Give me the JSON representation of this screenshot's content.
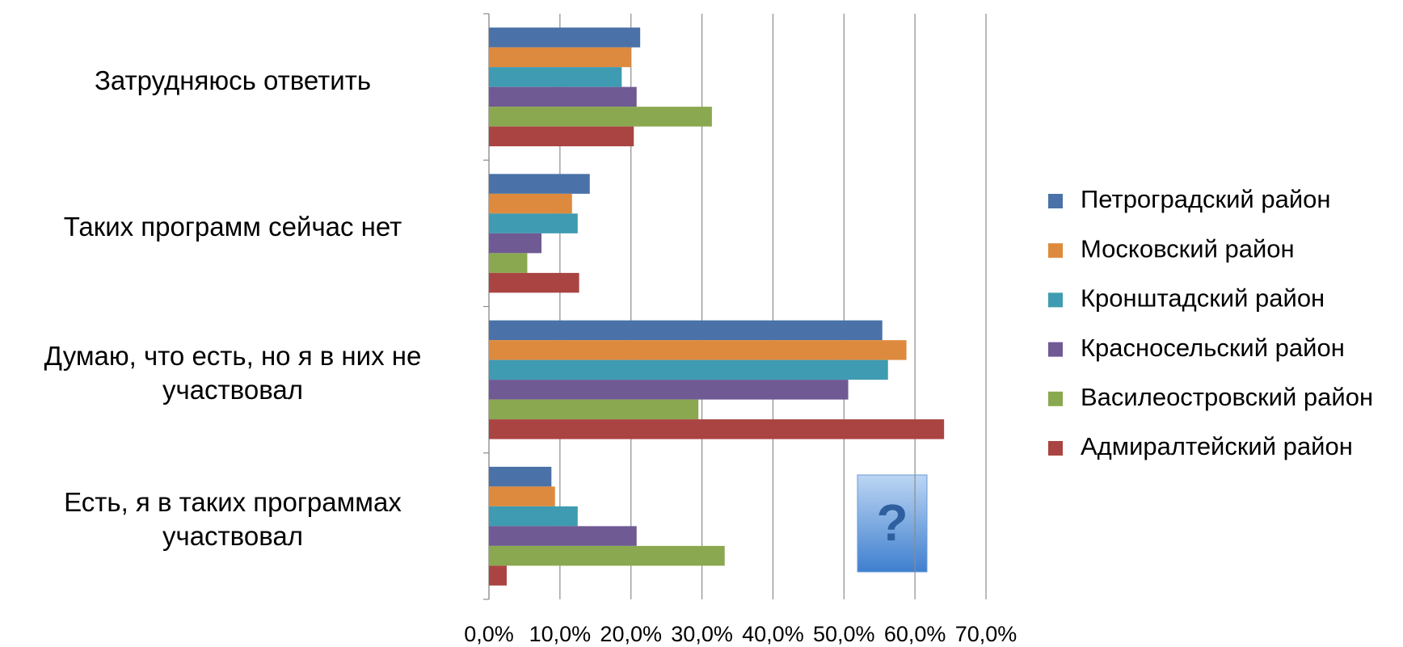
{
  "chart_data": {
    "type": "barh",
    "categories": [
      "Затрудняюсь ответить",
      "Таких программ сейчас нет",
      "Думаю, что есть, но я в них не участвовал",
      "Есть, я в таких программах участвовал"
    ],
    "series": [
      {
        "name": "Петроградский район",
        "color": "#4a72a8",
        "values": [
          21.3,
          14.2,
          55.4,
          8.8
        ]
      },
      {
        "name": "Московский район",
        "color": "#de8a3e",
        "values": [
          20.0,
          11.7,
          58.8,
          9.3
        ]
      },
      {
        "name": "Кронштадский район",
        "color": "#3f9bb2",
        "values": [
          18.7,
          12.5,
          56.2,
          12.5
        ]
      },
      {
        "name": "Красносельский район",
        "color": "#6f5a93",
        "values": [
          20.8,
          7.4,
          50.6,
          20.8
        ]
      },
      {
        "name": "Василеостровский район",
        "color": "#8aa84f",
        "values": [
          31.4,
          5.4,
          29.5,
          33.2
        ]
      },
      {
        "name": "Адмиралтейский район",
        "color": "#aa4442",
        "values": [
          20.4,
          12.7,
          64.1,
          2.5
        ]
      }
    ],
    "xlim": [
      0,
      70
    ],
    "xticks": [
      {
        "value": 0,
        "label": "0,0%"
      },
      {
        "value": 10,
        "label": "10,0%"
      },
      {
        "value": 20,
        "label": "20,0%"
      },
      {
        "value": 30,
        "label": "30,0%"
      },
      {
        "value": 40,
        "label": "40,0%"
      },
      {
        "value": 50,
        "label": "50,0%"
      },
      {
        "value": 60,
        "label": "60,0%"
      },
      {
        "value": 70,
        "label": "70,0%"
      }
    ],
    "grid": true,
    "legend": "right"
  }
}
